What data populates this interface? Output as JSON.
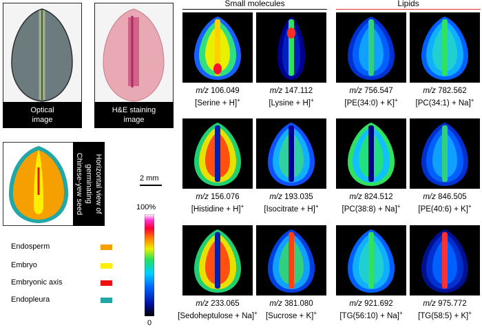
{
  "headers": {
    "small": "Small molecules",
    "lipids": "Lipids"
  },
  "colors": {
    "small_header_line": "#000000",
    "lipids_header_line": "#e03030",
    "endosperm": "#f5a000",
    "embryo": "#ffee00",
    "embryonic_axis": "#ee1111",
    "endopleura": "#23a6a6"
  },
  "top_panels": {
    "optical": [
      "Optical",
      "image"
    ],
    "he": [
      "H&E staining",
      "image"
    ]
  },
  "schematic_caption": [
    "Horizontal view of",
    "germinating",
    "Chinese-yew seed"
  ],
  "legend": [
    {
      "label": "Endosperm",
      "color": "#f5a000"
    },
    {
      "label": "Embryo",
      "color": "#ffee00"
    },
    {
      "label": "Embryonic axis",
      "color": "#ee1111"
    },
    {
      "label": "Endopleura",
      "color": "#23a6a6"
    }
  ],
  "scale_bar": "2 mm",
  "colorbar": {
    "max": "100%",
    "min": "0"
  },
  "tiles": [
    {
      "mz": "m/z",
      "value": "106.049",
      "ion": "[Serine + H]",
      "sup": "+",
      "pattern": "serine"
    },
    {
      "mz": "m/z",
      "value": "147.112",
      "ion": "[Lysine + H]",
      "sup": "+",
      "pattern": "lysine"
    },
    {
      "mz": "m/z",
      "value": "756.547",
      "ion": "[PE(34:0) + K]",
      "sup": "+",
      "pattern": "lipid_low"
    },
    {
      "mz": "m/z",
      "value": "782.562",
      "ion": "[PC(34:1) + Na]",
      "sup": "+",
      "pattern": "lipid_mid"
    },
    {
      "mz": "m/z",
      "value": "156.076",
      "ion": "[Histidine + H]",
      "sup": "+",
      "pattern": "endosperm_high"
    },
    {
      "mz": "m/z",
      "value": "193.035",
      "ion": "[Isocitrate + H]",
      "sup": "+",
      "pattern": "endosperm_mid"
    },
    {
      "mz": "m/z",
      "value": "824.512",
      "ion": "[PC(38:8) + Na]",
      "sup": "+",
      "pattern": "lipid_ring"
    },
    {
      "mz": "m/z",
      "value": "846.505",
      "ion": "[PE(40:6) + K]",
      "sup": "+",
      "pattern": "lipid_low"
    },
    {
      "mz": "m/z",
      "value": "233.065",
      "ion": "[Sedoheptulose + Na]",
      "sup": "+",
      "pattern": "endosperm_high"
    },
    {
      "mz": "m/z",
      "value": "381.080",
      "ion": "[Sucrose + K]",
      "sup": "+",
      "pattern": "sucrose"
    },
    {
      "mz": "m/z",
      "value": "921.692",
      "ion": "[TG(56:10) + Na]",
      "sup": "+",
      "pattern": "lipid_mid"
    },
    {
      "mz": "m/z",
      "value": "975.772",
      "ion": "[TG(58:5) + K]",
      "sup": "+",
      "pattern": "tg_low"
    }
  ]
}
